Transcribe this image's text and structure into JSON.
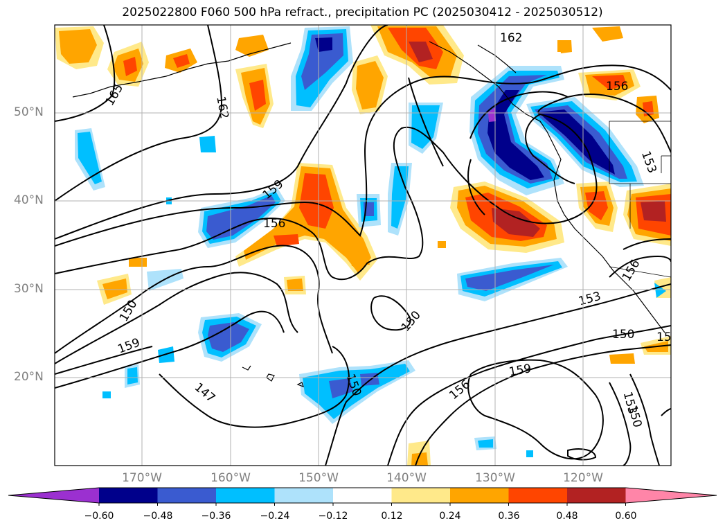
{
  "title": "2025022800 F060 500 hPa refract., precipitation PC (2025030412 - 2025030512)",
  "lat_labels": [
    "50°N",
    "40°N",
    "30°N",
    "20°N"
  ],
  "lon_labels": [
    "170°W",
    "160°W",
    "150°W",
    "140°W",
    "130°W",
    "120°W"
  ],
  "colorbar": {
    "ticks": [
      "−0.60",
      "−0.48",
      "−0.36",
      "−0.24",
      "−0.12",
      "0.12",
      "0.24",
      "0.36",
      "0.48",
      "0.60"
    ],
    "colors": [
      "#9b30d0",
      "#00008b",
      "#3a5bd0",
      "#00bfff",
      "#aee2fb",
      "#ffffff",
      "#ffe98a",
      "#ffa500",
      "#ff4500",
      "#b22222",
      "#ff85a8"
    ]
  },
  "contour_labels": [
    "162",
    "165",
    "162",
    "156",
    "153",
    "159",
    "156",
    "150",
    "150",
    "159",
    "147",
    "150",
    "156",
    "159",
    "153",
    "150",
    "150",
    "153",
    "156",
    "15"
  ]
}
